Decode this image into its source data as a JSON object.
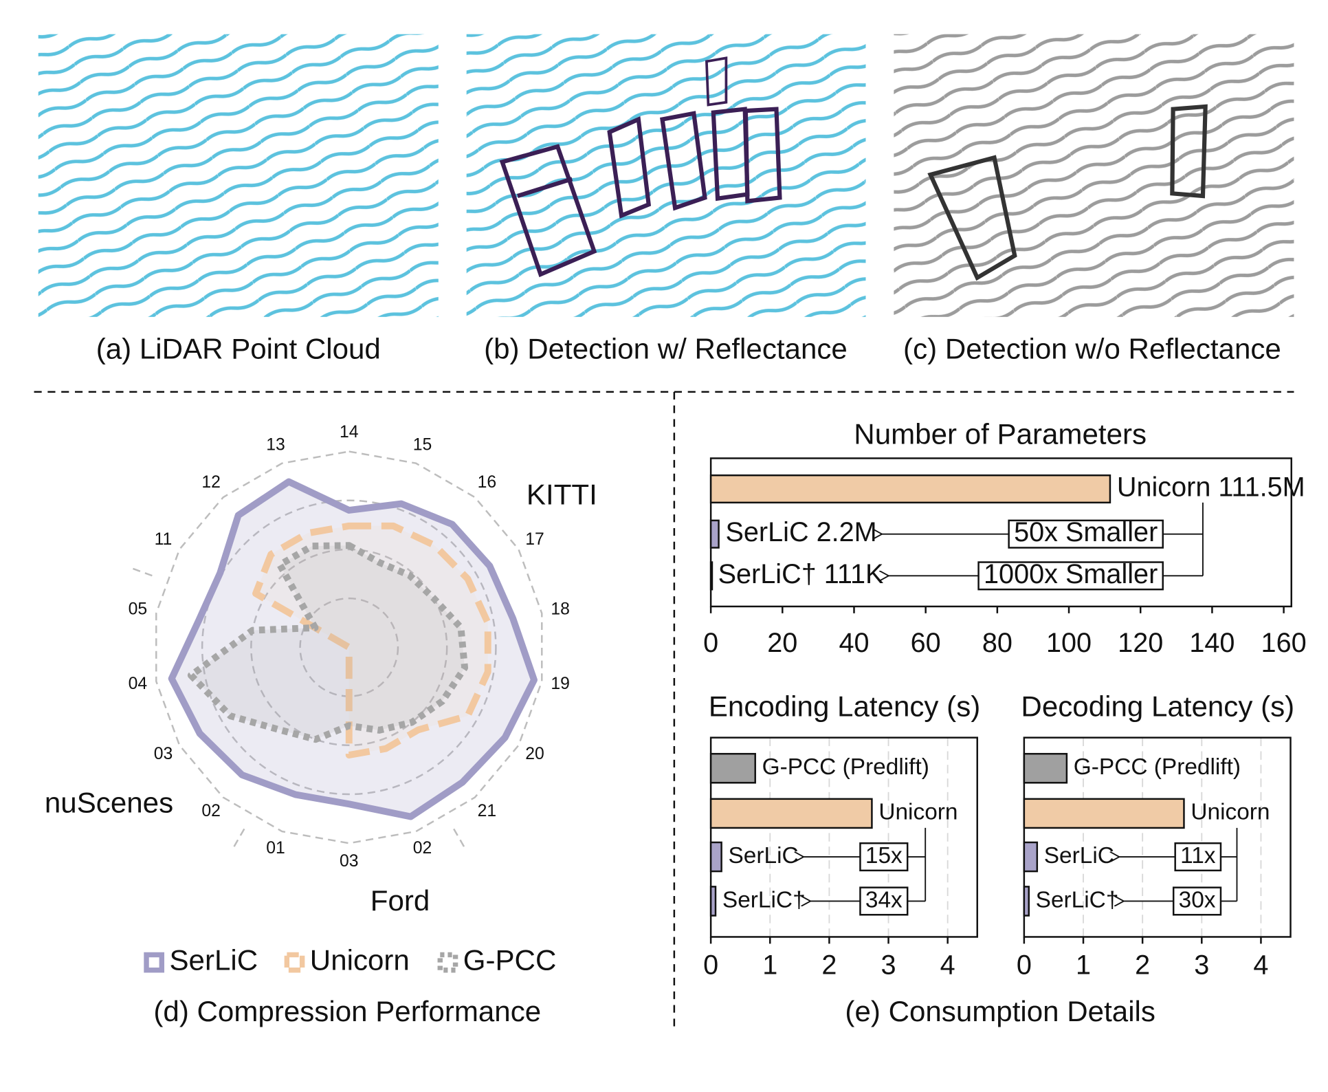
{
  "captions": [
    "(a) LiDAR Point Cloud",
    "(b) Detection w/ Reflectance",
    "(c) Detection w/o Reflectance",
    "(d) Compression Performance",
    "(e) Consumption Details"
  ],
  "chart_data": [
    {
      "type": "radar",
      "axes": [
        "14",
        "15",
        "16",
        "17",
        "18",
        "19",
        "20",
        "21",
        "02",
        "03",
        "01",
        "02",
        "03",
        "04",
        "05",
        "11",
        "12",
        "13"
      ],
      "group_labels": [
        "KITTI",
        "Ford",
        "nuScenes"
      ],
      "rlim": [
        0,
        1
      ],
      "rticks": [
        0.25,
        0.5,
        0.75,
        1
      ],
      "series": [
        {
          "name": "SerLiC",
          "color": "#a09cc6",
          "values": [
            0.7,
            0.78,
            0.82,
            0.83,
            0.85,
            0.96,
            0.92,
            0.9,
            0.92,
            0.8,
            0.8,
            0.85,
            0.88,
            0.92,
            0.78,
            0.76,
            0.88,
            0.9
          ]
        },
        {
          "name": "Unicorn",
          "color": "#f2c8a0",
          "values": [
            0.62,
            0.66,
            0.68,
            0.7,
            0.72,
            0.72,
            0.7,
            0.55,
            0.55,
            0.55,
            0,
            0,
            0,
            0,
            0,
            0.55,
            0.62,
            0.62
          ]
        },
        {
          "name": "G-PCC",
          "color": "#a6a6a6",
          "values": [
            0.52,
            0.46,
            0.48,
            0.5,
            0.58,
            0.6,
            0.55,
            0.5,
            0.45,
            0.4,
            0.5,
            0.55,
            0.7,
            0.82,
            0.5,
            0.2,
            0.55,
            0.55
          ]
        }
      ]
    },
    {
      "type": "barh",
      "title": "Number of Parameters",
      "values": [
        111.5,
        2.2,
        0.111
      ],
      "value_labels": [
        "Unicorn 111.5M",
        "SerLiC 2.2M",
        "SerLiC† 111K"
      ],
      "colors": [
        "#f0cba6",
        "#a9a3c9",
        "#a9a3c9"
      ],
      "annotations": [
        "50x Smaller",
        "1000x Smaller"
      ],
      "xlim": [
        0,
        160
      ],
      "xticks": [
        0,
        20,
        40,
        60,
        80,
        100,
        120,
        140,
        160
      ],
      "grid": false
    },
    {
      "type": "barh",
      "title": "Encoding Latency (s)",
      "categories": [
        "G-PCC (Predlift)",
        "Unicorn",
        "SerLiC",
        "SerLiC†"
      ],
      "values": [
        0.75,
        2.72,
        0.18,
        0.08
      ],
      "colors": [
        "#a0a0a0",
        "#f0cba6",
        "#a9a3c9",
        "#a9a3c9"
      ],
      "annotations": [
        "15x",
        "34x"
      ],
      "xlim": [
        0,
        4.5
      ],
      "xticks": [
        0,
        1,
        2,
        3,
        4
      ],
      "grid": true
    },
    {
      "type": "barh",
      "title": "Decoding Latency (s)",
      "categories": [
        "G-PCC (Predlift)",
        "Unicorn",
        "SerLiC",
        "SerLiC†"
      ],
      "values": [
        0.72,
        2.7,
        0.22,
        0.08
      ],
      "colors": [
        "#a0a0a0",
        "#f0cba6",
        "#a9a3c9",
        "#a9a3c9"
      ],
      "annotations": [
        "11x",
        "30x"
      ],
      "xlim": [
        0,
        4.5
      ],
      "xticks": [
        0,
        1,
        2,
        3,
        4
      ],
      "grid": true
    }
  ]
}
